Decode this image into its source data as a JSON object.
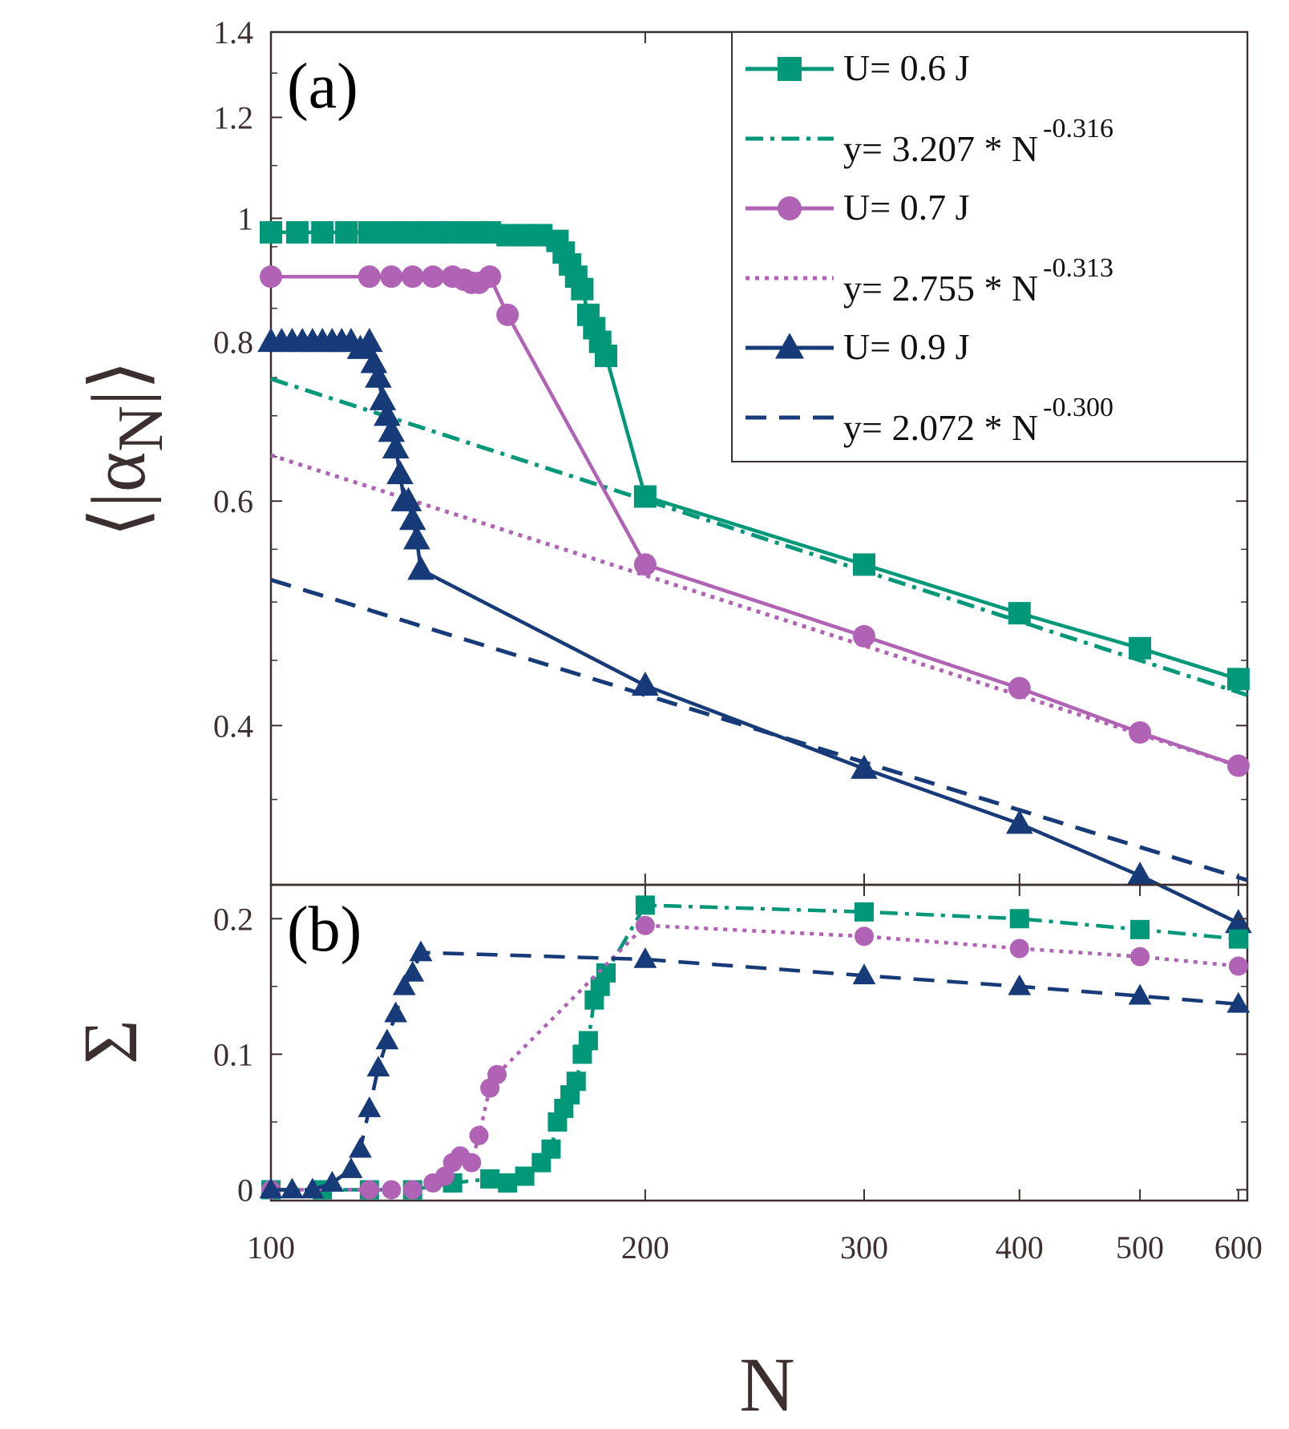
{
  "colors": {
    "U06": "#009879",
    "U07": "#b062b4",
    "U09": "#173a78",
    "axis": "#3b2f2f"
  },
  "chart_data": [
    {
      "type": "line",
      "panel_label": "(a)",
      "ylabel_inner": "|α",
      "ylabel_sub": "N",
      "xscale": "log",
      "yscale": "log",
      "xlim": [
        100,
        610
      ],
      "ylim": [
        0.3,
        1.4
      ],
      "yticks": [
        0.4,
        0.6,
        0.8,
        1,
        1.2,
        1.4
      ],
      "ytick_labels": [
        "0.4",
        "0.6",
        "0.8",
        "1",
        "1.2",
        "1.4"
      ],
      "series": [
        {
          "name": "U= 0.6 J",
          "color_key": "U06",
          "marker": "square",
          "line": "solid",
          "x": [
            100,
            105,
            110,
            115,
            120,
            125,
            130,
            135,
            140,
            145,
            150,
            155,
            160,
            165,
            170,
            172,
            174,
            176,
            178,
            180,
            182,
            184,
            186,
            200,
            300,
            400,
            500,
            600
          ],
          "y": [
            0.975,
            0.975,
            0.975,
            0.975,
            0.975,
            0.975,
            0.975,
            0.975,
            0.975,
            0.975,
            0.975,
            0.97,
            0.97,
            0.97,
            0.96,
            0.94,
            0.92,
            0.9,
            0.88,
            0.84,
            0.82,
            0.8,
            0.78,
            0.605,
            0.535,
            0.49,
            0.46,
            0.435
          ]
        },
        {
          "name": "y= 3.207 * N",
          "exponent": "-0.316",
          "color_key": "U06",
          "line": "dashdot",
          "prefactor": 3.207,
          "power": -0.316,
          "x_from": 100,
          "x_to": 610
        },
        {
          "name": "U= 0.7 J",
          "color_key": "U07",
          "marker": "circle",
          "line": "solid",
          "x": [
            100,
            120,
            125,
            130,
            135,
            140,
            143,
            145,
            147,
            150,
            155,
            200,
            300,
            400,
            500,
            600
          ],
          "y": [
            0.9,
            0.9,
            0.9,
            0.9,
            0.9,
            0.9,
            0.895,
            0.89,
            0.89,
            0.9,
            0.84,
            0.535,
            0.47,
            0.428,
            0.395,
            0.372
          ]
        },
        {
          "name": "y= 2.755 * N",
          "exponent": "-0.313",
          "color_key": "U07",
          "line": "dotted",
          "prefactor": 2.755,
          "power": -0.313,
          "x_from": 100,
          "x_to": 610
        },
        {
          "name": "U= 0.9 J",
          "color_key": "U09",
          "marker": "triangle",
          "line": "solid",
          "x": [
            100,
            102,
            104,
            106,
            108,
            110,
            112,
            114,
            116,
            118,
            120,
            121,
            122,
            123,
            124,
            125,
            126,
            127,
            128,
            129,
            130,
            131,
            132,
            200,
            300,
            400,
            500,
            600
          ],
          "y": [
            0.8,
            0.8,
            0.8,
            0.8,
            0.8,
            0.8,
            0.8,
            0.8,
            0.8,
            0.79,
            0.8,
            0.77,
            0.75,
            0.72,
            0.7,
            0.68,
            0.66,
            0.63,
            0.6,
            0.6,
            0.58,
            0.56,
            0.53,
            0.43,
            0.37,
            0.335,
            0.305,
            0.28
          ]
        },
        {
          "name": "y= 2.072 * N",
          "exponent": "-0.300",
          "color_key": "U09",
          "line": "dashed",
          "prefactor": 2.072,
          "power": -0.3,
          "x_from": 100,
          "x_to": 610
        }
      ]
    },
    {
      "type": "line",
      "panel_label": "(b)",
      "ylabel": "Σ",
      "xlabel": "N",
      "xscale": "log",
      "xlim": [
        100,
        610
      ],
      "ylim": [
        -0.008,
        0.225
      ],
      "yticks": [
        0,
        0.1,
        0.2
      ],
      "ytick_labels": [
        "0",
        "0.1",
        "0.2"
      ],
      "xticks": [
        100,
        200,
        300,
        400,
        500,
        600
      ],
      "xtick_labels": [
        "100",
        "200",
        "300",
        "400",
        "500",
        "600"
      ],
      "series": [
        {
          "name": "U= 0.6 J",
          "color_key": "U06",
          "marker": "square",
          "line": "dashdot",
          "x": [
            100,
            110,
            120,
            130,
            140,
            150,
            155,
            160,
            165,
            168,
            170,
            172,
            174,
            176,
            178,
            180,
            182,
            184,
            186,
            200,
            300,
            400,
            500,
            600
          ],
          "y": [
            0,
            0,
            0,
            0,
            0.005,
            0.008,
            0.005,
            0.01,
            0.02,
            0.03,
            0.05,
            0.06,
            0.07,
            0.08,
            0.1,
            0.11,
            0.14,
            0.15,
            0.16,
            0.21,
            0.205,
            0.2,
            0.192,
            0.185
          ]
        },
        {
          "name": "U= 0.7 J",
          "color_key": "U07",
          "marker": "circle",
          "line": "dotted",
          "x": [
            100,
            120,
            125,
            130,
            135,
            138,
            140,
            142,
            145,
            147,
            150,
            152,
            200,
            300,
            400,
            500,
            600
          ],
          "y": [
            0,
            0,
            0,
            0,
            0.005,
            0.01,
            0.02,
            0.025,
            0.02,
            0.04,
            0.075,
            0.085,
            0.195,
            0.187,
            0.178,
            0.172,
            0.165
          ]
        },
        {
          "name": "U= 0.9 J",
          "color_key": "U09",
          "marker": "triangle",
          "line": "dashed",
          "x": [
            100,
            104,
            108,
            112,
            116,
            118,
            120,
            122,
            124,
            126,
            128,
            130,
            132,
            200,
            300,
            400,
            500,
            600
          ],
          "y": [
            0,
            0,
            0,
            0.005,
            0.015,
            0.03,
            0.06,
            0.09,
            0.11,
            0.13,
            0.15,
            0.16,
            0.175,
            0.17,
            0.158,
            0.15,
            0.143,
            0.137
          ]
        }
      ]
    }
  ]
}
